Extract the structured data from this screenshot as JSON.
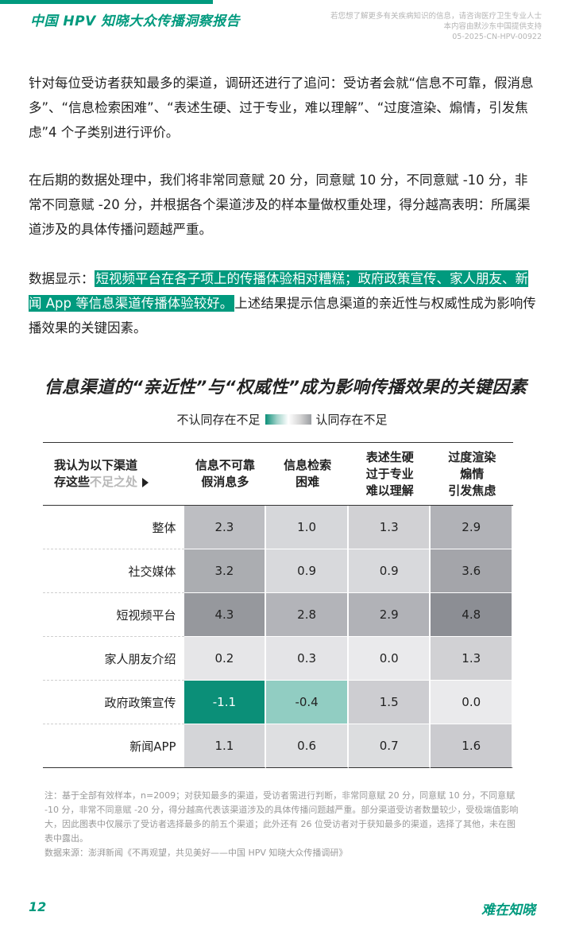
{
  "header": {
    "title": "中国 HPV 知晓大众传播洞察报告",
    "note_lines": [
      "若您想了解更多有关疾病知识的信息，请咨询医疗卫生专业人士",
      "本内容由默沙东中国提供支持",
      "05-2025-CN-HPV-00922"
    ]
  },
  "body": {
    "p1": "针对每位受访者获知最多的渠道，调研还进行了追问：受访者会就“信息不可靠，假消息多”、“信息检索困难”、“表述生硬、过于专业，难以理解”、“过度渲染、煽情，引发焦虑”4 个子类别进行评价。",
    "p2": "在后期的数据处理中，我们将非常同意赋 20 分，同意赋 10 分，不同意赋 -10 分，非常不同意赋 -20 分，并根据各个渠道涉及的样本量做权重处理，得分越高表明：所属渠道涉及的具体传播问题越严重。",
    "p3_prefix": "数据显示：",
    "p3_highlight": "短视频平台在各子项上的传播体验相对糟糕；政府政策宣传、家人朋友、新闻 App 等信息渠道传播体验较好。",
    "p3_suffix": "上述结果提示信息渠道的亲近性与权威性成为影响传播效果的关键因素。"
  },
  "chart_data": {
    "type": "heatmap",
    "title": "信息渠道的“亲近性”与“权威性”成为影响传播效果的关键因素",
    "legend_left": "不认同存在不足",
    "legend_right": "认同存在不足",
    "corner_line1": "我认为以下渠道",
    "corner_line2_a": "存这些",
    "corner_line2_b": "不足之处",
    "columns": [
      {
        "line1": "信息不可靠",
        "line2": "假消息多",
        "line3": ""
      },
      {
        "line1": "信息检索",
        "line2": "困难",
        "line3": ""
      },
      {
        "line1": "表述生硬",
        "line2": "过于专业",
        "line3": "难以理解"
      },
      {
        "line1": "过度渲染",
        "line2": "煽情",
        "line3": "引发焦虑"
      }
    ],
    "rows": [
      {
        "label": "整体",
        "values": [
          "2.3",
          "1.0",
          "1.3",
          "2.9"
        ]
      },
      {
        "label": "社交媒体",
        "values": [
          "3.2",
          "0.9",
          "0.9",
          "3.6"
        ]
      },
      {
        "label": "短视频平台",
        "values": [
          "4.3",
          "2.8",
          "2.9",
          "4.8"
        ]
      },
      {
        "label": "家人朋友介绍",
        "values": [
          "0.2",
          "0.3",
          "0.0",
          "1.3"
        ]
      },
      {
        "label": "政府政策宣传",
        "values": [
          "-1.1",
          "-0.4",
          "1.5",
          "0.0"
        ]
      },
      {
        "label": "新闻APP",
        "values": [
          "1.1",
          "0.6",
          "0.7",
          "1.6"
        ]
      }
    ]
  },
  "footnote": {
    "line1": "注：基于全部有效样本，n=2009；对获知最多的渠道，受访者需进行判断，非常同意赋 20 分，同意赋 10 分，不同意赋 -10 分，非常不同意赋 -20 分，得分越高代表该渠道涉及的具体传播问题越严重。部分渠道受访者数量较少，受极端值影响大，因此图表中仅展示了受访者选择最多的前五个渠道；此外还有 26 位受访者对于获知最多的渠道，选择了其他，未在图表中露出。",
    "source": "数据来源：澎湃新闻《不再观望，共见美好——中国 HPV 知晓大众传播调研》"
  },
  "footer": {
    "page_number": "12",
    "brand": "难在知晓"
  }
}
